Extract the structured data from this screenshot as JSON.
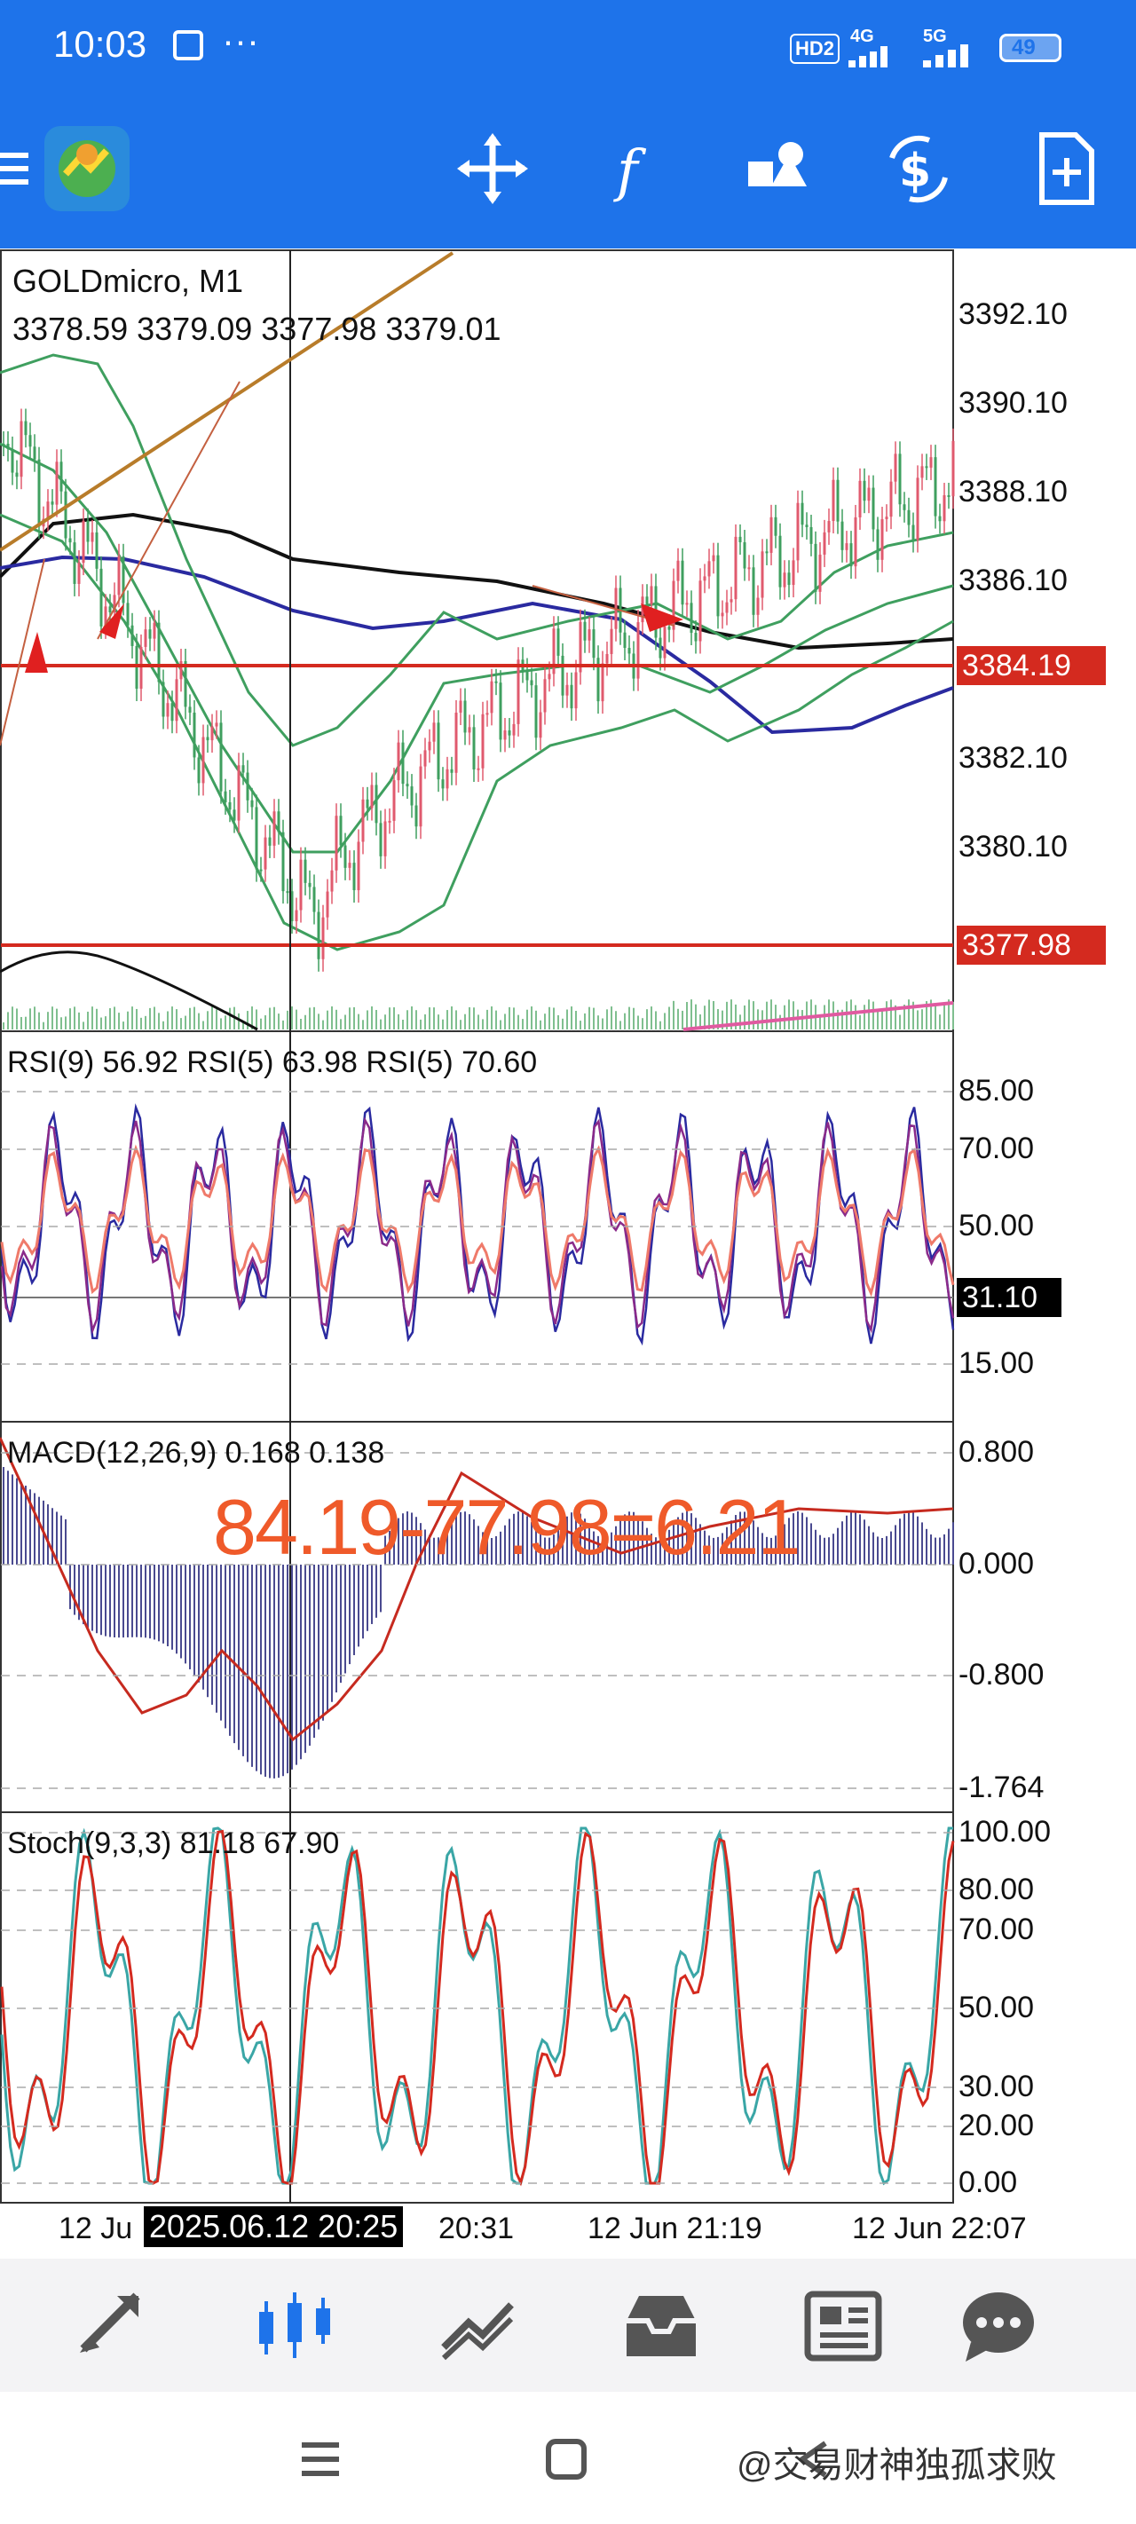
{
  "status": {
    "time": "10:03",
    "dots": "···",
    "hd_badge": "HD2",
    "net1": "4G",
    "net2": "5G",
    "battery": "49"
  },
  "toolbar": {
    "icons": [
      "menu-icon",
      "metatrader-logo",
      "crosshair-icon",
      "indicators-icon",
      "objects-icon",
      "trade-icon",
      "new-order-icon"
    ]
  },
  "chart": {
    "symbol_timeframe": "GOLDmicro, M1",
    "ohlc": "3378.59 3379.09 3377.98 3379.01",
    "price_ticks": [
      "3392.10",
      "3390.10",
      "3388.10",
      "3386.10",
      "3382.10",
      "3380.10"
    ],
    "level_high": "3384.19",
    "level_low": "3377.98",
    "colors": {
      "level": "#d42a1f",
      "ma_fast": "#2a2aa0",
      "ma_slow": "#111111",
      "bands": "#3f9f5f",
      "trend": "#b87c2a"
    }
  },
  "rsi": {
    "label": "RSI(9) 56.92 RSI(5) 63.98 RSI(5) 70.60",
    "ticks": [
      "85.00",
      "70.00",
      "50.00",
      "15.00"
    ],
    "cursor_value": "31.10"
  },
  "macd": {
    "label": "MACD(12,26,9) 0.168 0.138",
    "ticks": [
      "0.800",
      "0.000",
      "-0.800",
      "-1.764"
    ],
    "annotation": "84.19-77.98=6.21"
  },
  "stoch": {
    "label": "Stoch(9,3,3) 81.18 67.90",
    "ticks": [
      "100.00",
      "80.00",
      "70.00",
      "50.00",
      "30.00",
      "20.00",
      "0.00"
    ]
  },
  "time_axis": {
    "t1": "12 Ju",
    "cursor_time": "2025.06.12 20:25",
    "t2": "20:31",
    "t3": "12 Jun 21:19",
    "t4": "12 Jun 22:07"
  },
  "bottom_nav": [
    "quotes-icon",
    "chart-icon",
    "trade-icon",
    "history-icon",
    "news-icon",
    "chat-icon"
  ],
  "watermark": "@交易财神独孤求败"
}
